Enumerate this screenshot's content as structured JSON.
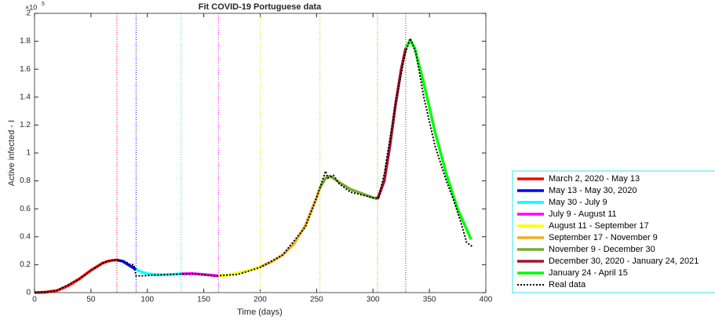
{
  "chart_data": {
    "type": "line",
    "title": "Fit COVID-19 Portuguese data",
    "xlabel": "Time (days)",
    "ylabel": "Active infected - I",
    "y_exponent": {
      "base": "×10",
      "power": "5"
    },
    "xlim": [
      0,
      400
    ],
    "xticks": [
      0,
      50,
      100,
      150,
      200,
      250,
      300,
      350,
      400
    ],
    "ylim": [
      0,
      2
    ],
    "yticks": [
      0,
      0.2,
      0.4,
      0.6,
      0.8,
      1,
      1.2,
      1.4,
      1.6,
      1.8,
      2
    ],
    "legend": "lower-right",
    "vlines": [
      {
        "x": 73,
        "color": "#ff0000"
      },
      {
        "x": 90,
        "color": "#0000ff"
      },
      {
        "x": 130,
        "color": "#00e5e5"
      },
      {
        "x": 163,
        "color": "#ff00ff"
      },
      {
        "x": 200,
        "color": "#e5e500"
      },
      {
        "x": 253,
        "color": "#edb120"
      },
      {
        "x": 304,
        "color": "#77ac30"
      },
      {
        "x": 329,
        "color": "#a2142f"
      }
    ],
    "series": [
      {
        "name": "March 2, 2020 - May 13",
        "color": "#ff0000",
        "style": "solid",
        "x": [
          0,
          10,
          20,
          30,
          40,
          50,
          60,
          65,
          70,
          73
        ],
        "values": [
          0,
          0.003,
          0.015,
          0.05,
          0.1,
          0.16,
          0.21,
          0.225,
          0.232,
          0.233
        ]
      },
      {
        "name": "May 13 - May 30, 2020",
        "color": "#0000ff",
        "style": "solid",
        "x": [
          73,
          78,
          83,
          87,
          90
        ],
        "values": [
          0.233,
          0.225,
          0.2,
          0.18,
          0.165
        ]
      },
      {
        "name": "May 30 - July 9",
        "color": "#00ffff",
        "style": "solid",
        "x": [
          90,
          95,
          100,
          110,
          120,
          130
        ],
        "values": [
          0.165,
          0.148,
          0.135,
          0.128,
          0.13,
          0.135
        ]
      },
      {
        "name": "July 9 - August 11",
        "color": "#ff00ff",
        "style": "solid",
        "x": [
          130,
          140,
          150,
          160,
          163
        ],
        "values": [
          0.135,
          0.136,
          0.13,
          0.122,
          0.12
        ]
      },
      {
        "name": "August 11 - September 17",
        "color": "#ffff00",
        "style": "solid",
        "x": [
          163,
          170,
          180,
          190,
          200
        ],
        "values": [
          0.12,
          0.125,
          0.14,
          0.16,
          0.185
        ]
      },
      {
        "name": "September 17 - November 9",
        "color": "#edb120",
        "style": "solid",
        "x": [
          200,
          210,
          220,
          230,
          240,
          250,
          253
        ],
        "values": [
          0.185,
          0.22,
          0.27,
          0.35,
          0.48,
          0.68,
          0.75
        ]
      },
      {
        "name": "November 9 - December 30",
        "color": "#77ac30",
        "style": "solid",
        "x": [
          253,
          258,
          262,
          270,
          280,
          290,
          300,
          304
        ],
        "values": [
          0.75,
          0.82,
          0.835,
          0.79,
          0.74,
          0.71,
          0.68,
          0.67
        ]
      },
      {
        "name": "December 30, 2020 - January 24, 2021",
        "color": "#a2142f",
        "style": "solid",
        "x": [
          304,
          310,
          315,
          320,
          325,
          329
        ],
        "values": [
          0.67,
          0.8,
          1.05,
          1.35,
          1.6,
          1.75
        ]
      },
      {
        "name": "January 24 - April 15",
        "color": "#00ff00",
        "style": "solid",
        "x": [
          329,
          333,
          337,
          345,
          355,
          365,
          375,
          387
        ],
        "values": [
          1.75,
          1.81,
          1.75,
          1.5,
          1.15,
          0.85,
          0.6,
          0.38
        ]
      },
      {
        "name": "Real data",
        "color": "#000000",
        "style": "dotted",
        "x": [
          0,
          20,
          40,
          60,
          70,
          80,
          85,
          88,
          90,
          95,
          105,
          120,
          140,
          160,
          180,
          200,
          220,
          240,
          250,
          255,
          258,
          260,
          265,
          270,
          280,
          290,
          300,
          305,
          310,
          320,
          328,
          333,
          338,
          345,
          355,
          365,
          372,
          378,
          383,
          388
        ],
        "values": [
          0,
          0.015,
          0.1,
          0.21,
          0.235,
          0.225,
          0.2,
          0.2,
          0.12,
          0.12,
          0.125,
          0.13,
          0.135,
          0.12,
          0.13,
          0.18,
          0.27,
          0.47,
          0.68,
          0.8,
          0.87,
          0.82,
          0.84,
          0.78,
          0.72,
          0.7,
          0.68,
          0.68,
          0.85,
          1.35,
          1.7,
          1.82,
          1.72,
          1.4,
          1.05,
          0.8,
          0.65,
          0.5,
          0.36,
          0.33
        ]
      }
    ]
  }
}
